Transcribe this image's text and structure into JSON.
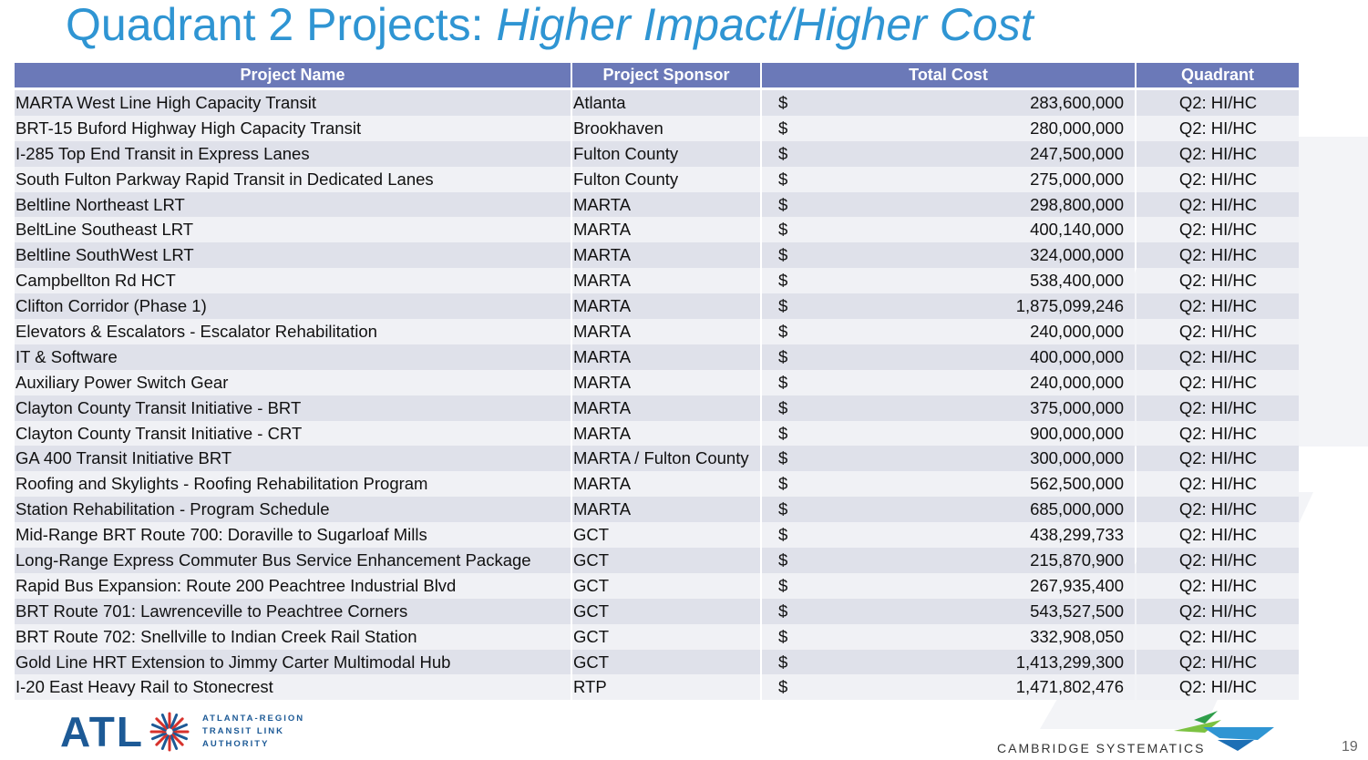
{
  "title": {
    "main": "Quadrant 2 Projects: ",
    "emphasis": "Higher Impact/Higher Cost"
  },
  "table": {
    "headers": [
      "Project Name",
      "Project Sponsor",
      "Total Cost",
      "Quadrant"
    ],
    "currency_symbol": "$",
    "rows": [
      {
        "name": "MARTA West Line High Capacity Transit",
        "sponsor": "Atlanta",
        "cost": "283,600,000",
        "quadrant": "Q2: HI/HC"
      },
      {
        "name": "BRT-15 Buford Highway High Capacity Transit",
        "sponsor": "Brookhaven",
        "cost": "280,000,000",
        "quadrant": "Q2: HI/HC"
      },
      {
        "name": "I-285 Top End Transit in Express Lanes",
        "sponsor": "Fulton County",
        "cost": "247,500,000",
        "quadrant": "Q2: HI/HC"
      },
      {
        "name": "South Fulton Parkway Rapid Transit in Dedicated Lanes",
        "sponsor": "Fulton County",
        "cost": "275,000,000",
        "quadrant": "Q2: HI/HC"
      },
      {
        "name": "Beltline Northeast LRT",
        "sponsor": "MARTA",
        "cost": "298,800,000",
        "quadrant": "Q2: HI/HC"
      },
      {
        "name": "BeltLine Southeast LRT",
        "sponsor": "MARTA",
        "cost": "400,140,000",
        "quadrant": "Q2: HI/HC"
      },
      {
        "name": "Beltline SouthWest LRT",
        "sponsor": "MARTA",
        "cost": "324,000,000",
        "quadrant": "Q2: HI/HC"
      },
      {
        "name": "Campbellton Rd HCT",
        "sponsor": "MARTA",
        "cost": "538,400,000",
        "quadrant": "Q2: HI/HC"
      },
      {
        "name": "Clifton Corridor (Phase 1)",
        "sponsor": "MARTA",
        "cost": "1,875,099,246",
        "quadrant": "Q2: HI/HC"
      },
      {
        "name": "Elevators & Escalators - Escalator Rehabilitation",
        "sponsor": "MARTA",
        "cost": "240,000,000",
        "quadrant": "Q2: HI/HC"
      },
      {
        "name": "IT & Software",
        "sponsor": "MARTA",
        "cost": "400,000,000",
        "quadrant": "Q2: HI/HC"
      },
      {
        "name": "Auxiliary Power Switch Gear",
        "sponsor": "MARTA",
        "cost": "240,000,000",
        "quadrant": "Q2: HI/HC"
      },
      {
        "name": "Clayton County Transit Initiative - BRT",
        "sponsor": "MARTA",
        "cost": "375,000,000",
        "quadrant": "Q2: HI/HC"
      },
      {
        "name": "Clayton County Transit Initiative - CRT",
        "sponsor": "MARTA",
        "cost": "900,000,000",
        "quadrant": "Q2: HI/HC"
      },
      {
        "name": "GA 400 Transit Initiative BRT",
        "sponsor": "MARTA / Fulton County",
        "cost": "300,000,000",
        "quadrant": "Q2: HI/HC"
      },
      {
        "name": "Roofing and Skylights - Roofing Rehabilitation Program",
        "sponsor": "MARTA",
        "cost": "562,500,000",
        "quadrant": "Q2: HI/HC"
      },
      {
        "name": "Station Rehabilitation - Program Schedule",
        "sponsor": "MARTA",
        "cost": "685,000,000",
        "quadrant": "Q2: HI/HC"
      },
      {
        "name": "Mid-Range BRT Route 700: Doraville to Sugarloaf Mills",
        "sponsor": "GCT",
        "cost": "438,299,733",
        "quadrant": "Q2: HI/HC"
      },
      {
        "name": "Long-Range Express Commuter Bus Service Enhancement Package",
        "sponsor": "GCT",
        "cost": "215,870,900",
        "quadrant": "Q2: HI/HC"
      },
      {
        "name": "Rapid Bus Expansion: Route 200 Peachtree Industrial Blvd",
        "sponsor": "GCT",
        "cost": "267,935,400",
        "quadrant": "Q2: HI/HC"
      },
      {
        "name": "BRT Route 701: Lawrenceville to Peachtree Corners",
        "sponsor": "GCT",
        "cost": "543,527,500",
        "quadrant": "Q2: HI/HC"
      },
      {
        "name": "BRT Route 702: Snellville to Indian Creek Rail Station",
        "sponsor": "GCT",
        "cost": "332,908,050",
        "quadrant": "Q2: HI/HC"
      },
      {
        "name": "Gold Line HRT Extension to Jimmy Carter Multimodal Hub",
        "sponsor": "GCT",
        "cost": "1,413,299,300",
        "quadrant": "Q2: HI/HC"
      },
      {
        "name": "I-20 East Heavy Rail to Stonecrest",
        "sponsor": "RTP",
        "cost": "1,471,802,476",
        "quadrant": "Q2: HI/HC"
      }
    ]
  },
  "footer": {
    "atl_logo_text": "ATL",
    "atl_subtitle": [
      "ATLANTA-REGION",
      "TRANSIT LINK",
      "AUTHORITY"
    ],
    "cs_name": "CAMBRIDGE SYSTEMATICS",
    "page_number": "19"
  },
  "colors": {
    "title": "#2f95d3",
    "header_bg": "#6b79b8",
    "row_odd": "#dfe1ea",
    "row_even": "#f0f1f5",
    "atl_blue": "#1d5a96",
    "atl_red": "#d7322c"
  }
}
